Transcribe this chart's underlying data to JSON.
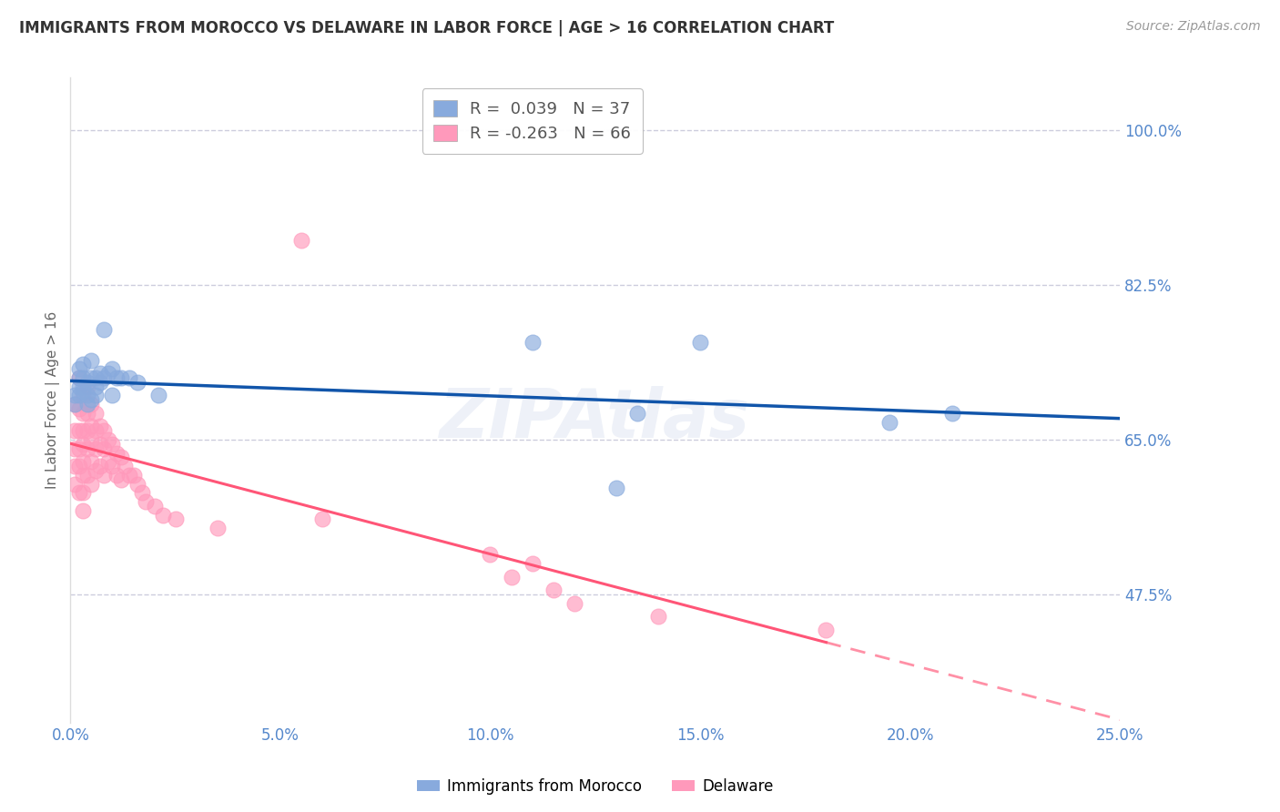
{
  "title": "IMMIGRANTS FROM MOROCCO VS DELAWARE IN LABOR FORCE | AGE > 16 CORRELATION CHART",
  "source": "Source: ZipAtlas.com",
  "ylabel": "In Labor Force | Age > 16",
  "right_ytick_labels": [
    "100.0%",
    "82.5%",
    "65.0%",
    "47.5%"
  ],
  "right_ytick_values": [
    1.0,
    0.825,
    0.65,
    0.475
  ],
  "xlim": [
    0.0,
    0.25
  ],
  "ylim": [
    0.33,
    1.06
  ],
  "xtick_labels": [
    "0.0%",
    "5.0%",
    "10.0%",
    "15.0%",
    "20.0%",
    "25.0%"
  ],
  "xtick_values": [
    0.0,
    0.05,
    0.1,
    0.15,
    0.2,
    0.25
  ],
  "legend_r_morocco": " 0.039",
  "legend_n_morocco": "37",
  "legend_r_delaware": "-0.263",
  "legend_n_delaware": "66",
  "blue_color": "#88AADD",
  "pink_color": "#FF99BB",
  "blue_line_color": "#1155AA",
  "pink_line_color": "#FF5577",
  "grid_color": "#CCCCDD",
  "background_color": "#FFFFFF",
  "right_axis_color": "#5588CC",
  "watermark_color": "#AABBDD",
  "morocco_x": [
    0.001,
    0.001,
    0.002,
    0.002,
    0.002,
    0.002,
    0.003,
    0.003,
    0.003,
    0.003,
    0.004,
    0.004,
    0.004,
    0.005,
    0.005,
    0.005,
    0.006,
    0.006,
    0.006,
    0.007,
    0.007,
    0.008,
    0.008,
    0.009,
    0.01,
    0.01,
    0.011,
    0.012,
    0.014,
    0.016,
    0.021,
    0.11,
    0.13,
    0.135,
    0.15,
    0.195,
    0.21
  ],
  "morocco_y": [
    0.7,
    0.69,
    0.72,
    0.71,
    0.7,
    0.73,
    0.735,
    0.72,
    0.705,
    0.71,
    0.715,
    0.7,
    0.69,
    0.74,
    0.72,
    0.695,
    0.72,
    0.71,
    0.7,
    0.725,
    0.715,
    0.775,
    0.72,
    0.725,
    0.73,
    0.7,
    0.72,
    0.72,
    0.72,
    0.715,
    0.7,
    0.76,
    0.595,
    0.68,
    0.76,
    0.67,
    0.68
  ],
  "delaware_x": [
    0.001,
    0.001,
    0.001,
    0.001,
    0.001,
    0.002,
    0.002,
    0.002,
    0.002,
    0.002,
    0.002,
    0.003,
    0.003,
    0.003,
    0.003,
    0.003,
    0.003,
    0.003,
    0.003,
    0.004,
    0.004,
    0.004,
    0.004,
    0.004,
    0.005,
    0.005,
    0.005,
    0.005,
    0.005,
    0.006,
    0.006,
    0.006,
    0.006,
    0.007,
    0.007,
    0.007,
    0.008,
    0.008,
    0.008,
    0.009,
    0.009,
    0.01,
    0.01,
    0.011,
    0.011,
    0.012,
    0.012,
    0.013,
    0.014,
    0.015,
    0.016,
    0.017,
    0.018,
    0.02,
    0.022,
    0.025,
    0.035,
    0.06,
    0.1,
    0.11,
    0.105,
    0.115,
    0.12,
    0.14,
    0.18,
    0.055
  ],
  "delaware_y": [
    0.69,
    0.66,
    0.64,
    0.62,
    0.6,
    0.72,
    0.685,
    0.66,
    0.64,
    0.62,
    0.59,
    0.7,
    0.68,
    0.66,
    0.645,
    0.625,
    0.61,
    0.59,
    0.57,
    0.71,
    0.68,
    0.66,
    0.64,
    0.61,
    0.69,
    0.665,
    0.65,
    0.625,
    0.6,
    0.68,
    0.66,
    0.64,
    0.615,
    0.665,
    0.645,
    0.62,
    0.66,
    0.64,
    0.61,
    0.65,
    0.625,
    0.645,
    0.62,
    0.635,
    0.61,
    0.63,
    0.605,
    0.62,
    0.61,
    0.61,
    0.6,
    0.59,
    0.58,
    0.575,
    0.565,
    0.56,
    0.55,
    0.56,
    0.52,
    0.51,
    0.495,
    0.48,
    0.465,
    0.45,
    0.435,
    0.875
  ]
}
